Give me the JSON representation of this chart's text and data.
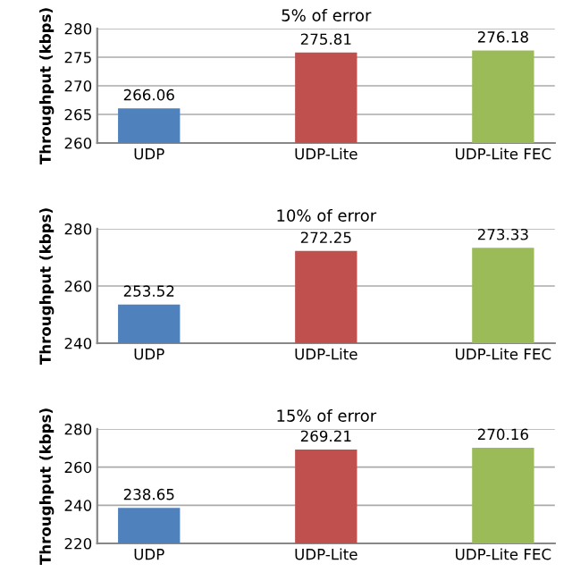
{
  "chart_data": [
    {
      "type": "bar",
      "title": "5% of error",
      "ylabel": "Throughput (kbps)",
      "categories": [
        "UDP",
        "UDP-Lite",
        "UDP-Lite FEC"
      ],
      "values": [
        266.06,
        275.81,
        276.18
      ],
      "colors": [
        "#4f81bd",
        "#c0504d",
        "#9bbb59"
      ],
      "data_labels": true,
      "ylim": [
        260,
        280
      ],
      "yticks": [
        260,
        265,
        270,
        275,
        280
      ],
      "grid": "y"
    },
    {
      "type": "bar",
      "title": "10% of error",
      "ylabel": "Throughput (kbps)",
      "categories": [
        "UDP",
        "UDP-Lite",
        "UDP-Lite FEC"
      ],
      "values": [
        253.52,
        272.25,
        273.33
      ],
      "colors": [
        "#4f81bd",
        "#c0504d",
        "#9bbb59"
      ],
      "data_labels": true,
      "ylim": [
        240,
        280
      ],
      "yticks": [
        240,
        260,
        280
      ],
      "grid": "y"
    },
    {
      "type": "bar",
      "title": "15% of error",
      "ylabel": "Throughput (kbps)",
      "categories": [
        "UDP",
        "UDP-Lite",
        "UDP-Lite FEC"
      ],
      "values": [
        238.65,
        269.21,
        270.16
      ],
      "colors": [
        "#4f81bd",
        "#c0504d",
        "#9bbb59"
      ],
      "data_labels": true,
      "ylim": [
        220,
        280
      ],
      "yticks": [
        220,
        240,
        260,
        280
      ],
      "grid": "y"
    }
  ]
}
